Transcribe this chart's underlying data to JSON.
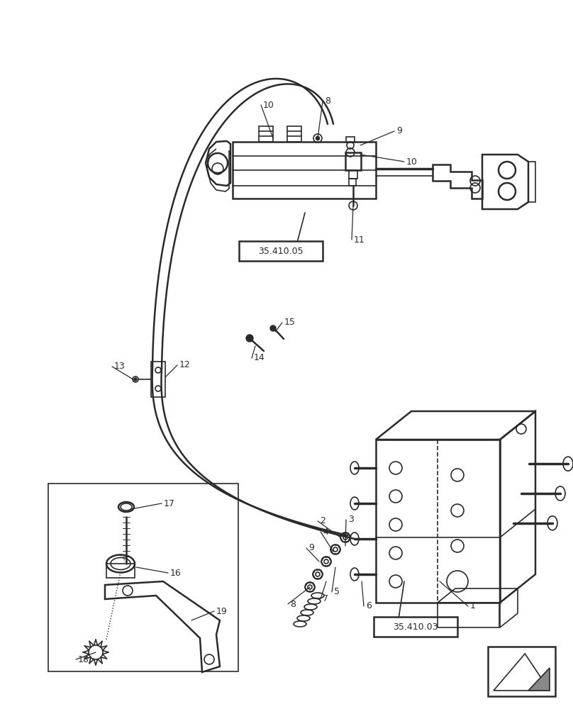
{
  "bg_color": "#ffffff",
  "line_color": "#2a2a2a",
  "fig_width": 8.08,
  "fig_height": 10.0,
  "dpi": 100
}
